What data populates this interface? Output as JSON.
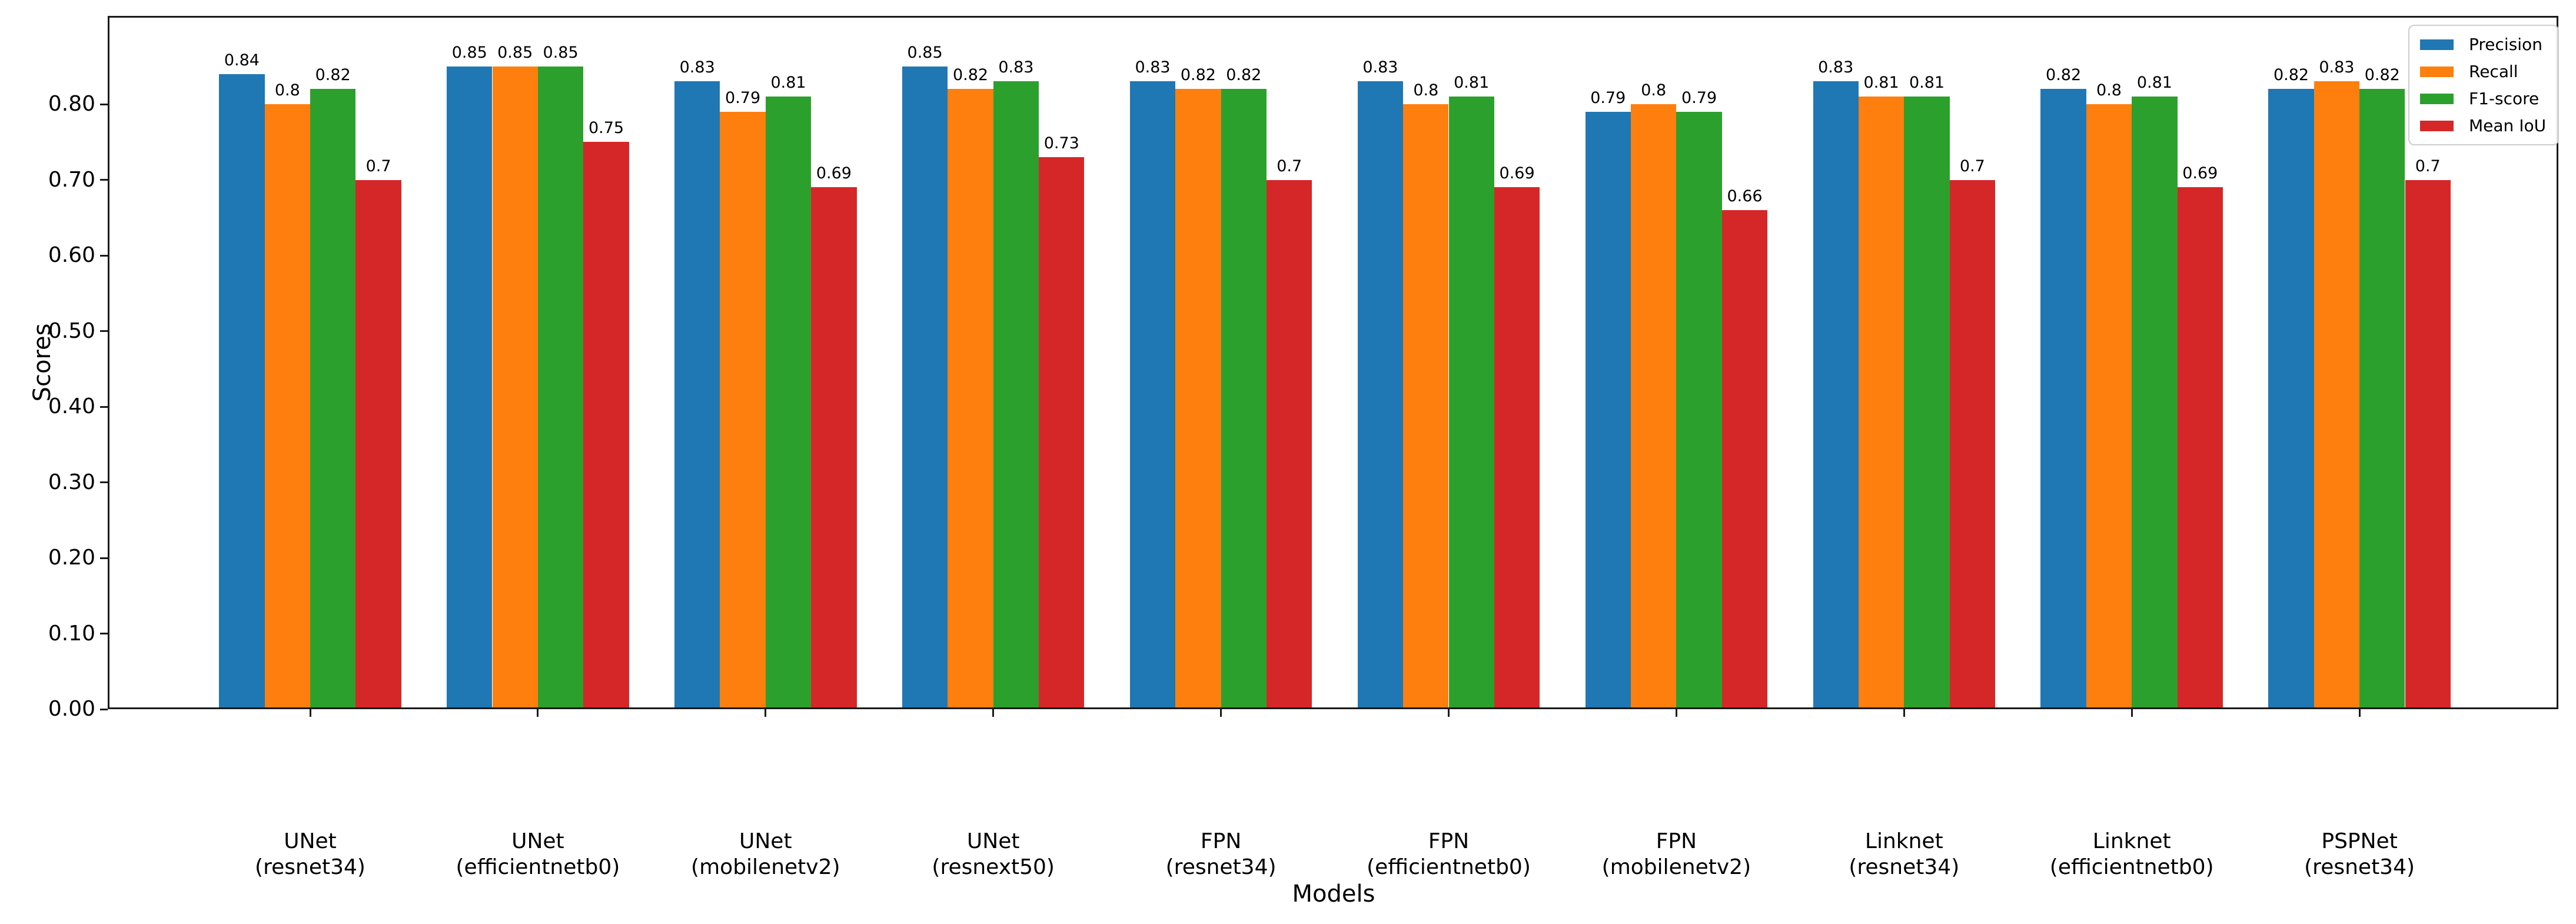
{
  "chart_data": {
    "type": "bar",
    "xlabel": "Models",
    "ylabel": "Scores",
    "categories": [
      "UNet\n(resnet34)",
      "UNet\n(efficientnetb0)",
      "UNet\n(mobilenetv2)",
      "UNet\n(resnext50)",
      "FPN\n(resnet34)",
      "FPN\n(efficientnetb0)",
      "FPN\n(mobilenetv2)",
      "Linknet\n(resnet34)",
      "Linknet\n(efficientnetb0)",
      "PSPNet\n(resnet34)"
    ],
    "series": [
      {
        "name": "Precision",
        "color": "#1f77b4",
        "values": [
          0.84,
          0.85,
          0.83,
          0.85,
          0.83,
          0.83,
          0.79,
          0.83,
          0.82,
          0.82
        ]
      },
      {
        "name": "Recall",
        "color": "#ff7f0e",
        "values": [
          0.8,
          0.85,
          0.79,
          0.82,
          0.82,
          0.8,
          0.8,
          0.81,
          0.8,
          0.83
        ]
      },
      {
        "name": "F1-score",
        "color": "#2ca02c",
        "values": [
          0.82,
          0.85,
          0.81,
          0.83,
          0.82,
          0.81,
          0.79,
          0.81,
          0.81,
          0.82
        ]
      },
      {
        "name": "Mean IoU",
        "color": "#d62728",
        "values": [
          0.7,
          0.75,
          0.69,
          0.73,
          0.7,
          0.69,
          0.66,
          0.7,
          0.69,
          0.7
        ]
      }
    ],
    "ylim": [
      0,
      0.92
    ],
    "yticks": {
      "values": [
        0,
        0.1,
        0.2,
        0.3,
        0.4,
        0.5,
        0.6,
        0.7,
        0.8
      ],
      "labels": [
        "0.00",
        "0.10",
        "0.20",
        "0.30",
        "0.40",
        "0.50",
        "0.60",
        "0.70",
        "0.80"
      ]
    },
    "grid": false,
    "bar_value_labels": true,
    "legend": {
      "position": "upper right",
      "entries": [
        "Precision",
        "Recall",
        "F1-score",
        "Mean IoU"
      ]
    }
  }
}
